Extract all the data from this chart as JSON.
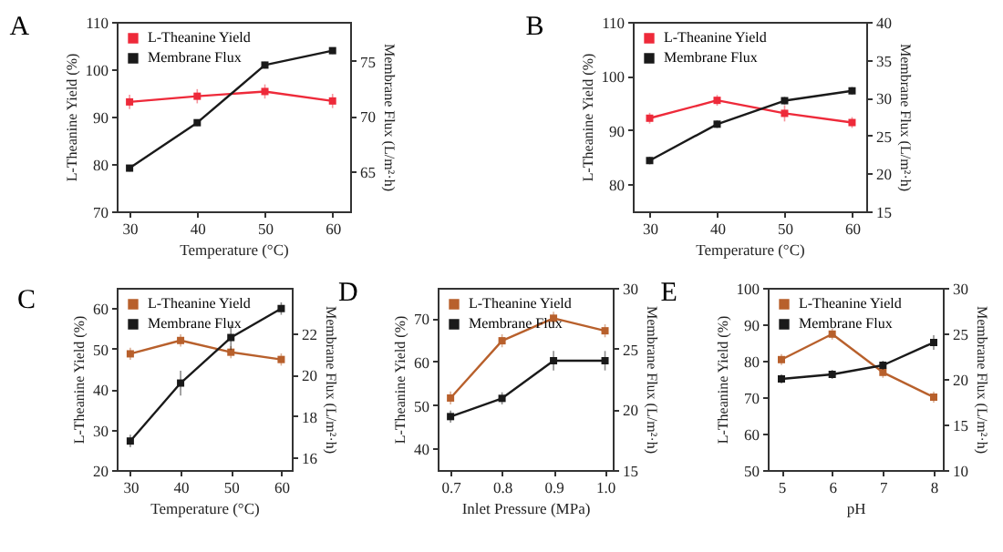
{
  "chart_data": [
    {
      "type": "line",
      "title": "A",
      "xlabel": "Temperature (°C)",
      "ylabel": "L-Theanine Yield (%)",
      "y2label": "Membrane Flux (L/m²·h)",
      "x": [
        30,
        40,
        50,
        60
      ],
      "xlim": [
        28.1,
        62.6
      ],
      "xticks": [
        30,
        40,
        50,
        60
      ],
      "ylim": [
        70,
        110
      ],
      "yticks": [
        70,
        80,
        90,
        100,
        110
      ],
      "y2lim": [
        61.4,
        78.5
      ],
      "y2ticks": [
        65,
        70,
        75
      ],
      "legend": "top left",
      "grid": false,
      "marker": "square",
      "line_style": "solid",
      "series": [
        {
          "name": "L-Theanine Yield",
          "color": "#ee2a3a",
          "values": [
            93.1,
            94.3,
            95.3,
            93.3
          ],
          "errors": [
            1.5,
            1.5,
            1.5,
            1.5
          ]
        },
        {
          "name": "Membrane Flux",
          "color": "#1a1a1a",
          "axis": "y2",
          "values": [
            65.3,
            69.4,
            74.6,
            75.9
          ],
          "errors": [
            0.3,
            0.3,
            0.3,
            0.3
          ]
        }
      ]
    },
    {
      "type": "line",
      "title": "B",
      "xlabel": "Temperature (°C)",
      "ylabel": "L-Theanine Yield (%)",
      "y2label": "Membrane Flux (L/m²·h)",
      "x": [
        30,
        40,
        50,
        60
      ],
      "xlim": [
        27.5,
        62.1
      ],
      "xticks": [
        30,
        40,
        50,
        60
      ],
      "ylim": [
        75,
        110
      ],
      "yticks": [
        80,
        90,
        100,
        110
      ],
      "y2lim": [
        15,
        40
      ],
      "y2ticks": [
        15,
        20,
        25,
        30,
        35,
        40
      ],
      "legend": "top left",
      "grid": false,
      "marker": "square",
      "line_style": "solid",
      "series": [
        {
          "name": "L-Theanine Yield",
          "color": "#ee2a3a",
          "values": [
            92.2,
            95.5,
            93.1,
            91.4
          ],
          "errors": [
            1,
            1,
            1.5,
            1
          ]
        },
        {
          "name": "Membrane Flux",
          "color": "#1a1a1a",
          "axis": "y2",
          "values": [
            21.7,
            26.5,
            29.6,
            30.9
          ],
          "errors": [
            0.5,
            0.5,
            0.5,
            0.5
          ]
        }
      ]
    },
    {
      "type": "line",
      "title": "C",
      "xlabel": "Temperature (°C)",
      "ylabel": "L-Theanine Yield (%)",
      "y2label": "Membrane Flux (L/m²·h)",
      "x": [
        30,
        40,
        50,
        60
      ],
      "xlim": [
        27.3,
        62.1
      ],
      "xticks": [
        30,
        40,
        50,
        60
      ],
      "ylim": [
        20,
        65
      ],
      "yticks": [
        20,
        30,
        40,
        50,
        60
      ],
      "y2lim": [
        15.4,
        24.2
      ],
      "y2ticks": [
        16,
        18,
        20,
        22
      ],
      "legend": "top left",
      "grid": false,
      "marker": "square",
      "line_style": "solid",
      "series": [
        {
          "name": "L-Theanine Yield",
          "color": "#b8602c",
          "values": [
            48.7,
            52,
            49.1,
            47.3
          ],
          "errors": [
            1.5,
            1.5,
            1.5,
            1.5
          ]
        },
        {
          "name": "Membrane Flux",
          "color": "#1a1a1a",
          "axis": "y2",
          "values": [
            16.8,
            19.6,
            21.8,
            23.2
          ],
          "errors": [
            0.3,
            0.6,
            0.6,
            0.3
          ]
        }
      ]
    },
    {
      "type": "line",
      "title": "D",
      "xlabel": "Inlet Pressure (MPa)",
      "ylabel": "L-Theanine Yield (%)",
      "y2label": "Membrane Flux (L/m²·h)",
      "x": [
        0.7,
        0.8,
        0.9,
        1
      ],
      "xlim": [
        0.675,
        1.015
      ],
      "xticks": [
        0.7,
        0.8,
        0.9,
        {
          "value": 1,
          "label": "1.0"
        }
      ],
      "ylim": [
        35,
        77
      ],
      "yticks": [
        40,
        50,
        60,
        70
      ],
      "y2lim": [
        15,
        30
      ],
      "y2ticks": [
        15,
        20,
        25,
        30
      ],
      "legend": "top left",
      "grid": false,
      "marker": "square",
      "line_style": "solid",
      "series": [
        {
          "name": "L-Theanine Yield",
          "color": "#b8602c",
          "values": [
            51.6,
            64.8,
            70,
            67.1
          ],
          "errors": [
            1.5,
            1.5,
            1.5,
            1.5
          ]
        },
        {
          "name": "Membrane Flux",
          "color": "#1a1a1a",
          "axis": "y2",
          "values": [
            19.4,
            20.9,
            24,
            24
          ],
          "errors": [
            0.5,
            0.5,
            0.8,
            0.8
          ]
        }
      ]
    },
    {
      "type": "line",
      "title": "E",
      "xlabel": "pH",
      "ylabel": "L-Theanine Yield (%)",
      "y2label": "Membrane Flux (L/m²·h)",
      "x": [
        5,
        6,
        7,
        8
      ],
      "xlim": [
        4.73,
        8.18
      ],
      "xticks": [
        5,
        6,
        7,
        8
      ],
      "ylim": [
        50,
        100
      ],
      "yticks": [
        50,
        60,
        70,
        80,
        90,
        100
      ],
      "y2lim": [
        10,
        30
      ],
      "y2ticks": [
        10,
        15,
        20,
        25,
        30
      ],
      "legend": "top left",
      "grid": false,
      "marker": "square",
      "line_style": "solid",
      "series": [
        {
          "name": "L-Theanine Yield",
          "color": "#b8602c",
          "values": [
            80.3,
            87.3,
            76.8,
            70
          ],
          "errors": [
            1.5,
            1.5,
            1.5,
            1.5
          ]
        },
        {
          "name": "Membrane Flux",
          "color": "#1a1a1a",
          "axis": "y2",
          "values": [
            20,
            20.5,
            21.5,
            24
          ],
          "errors": [
            0.5,
            0.5,
            0.5,
            0.8
          ]
        }
      ]
    }
  ]
}
